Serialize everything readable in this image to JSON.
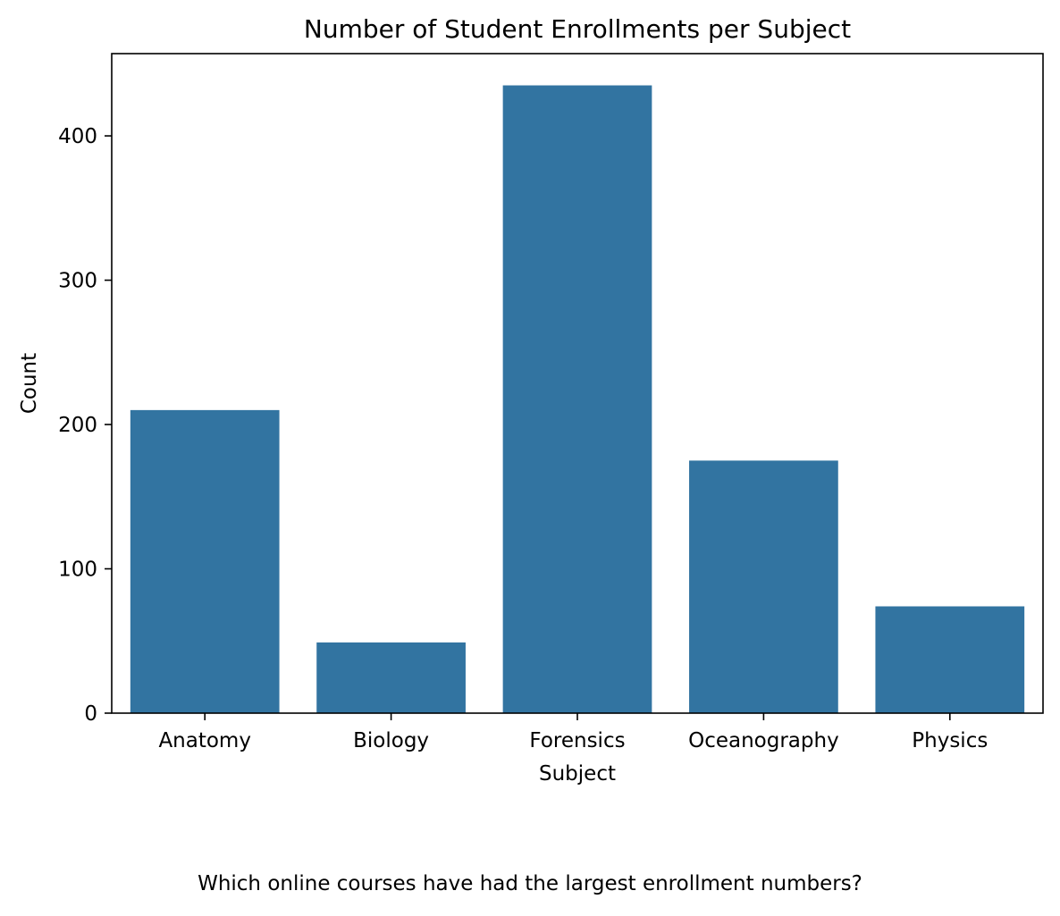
{
  "chart_data": {
    "type": "bar",
    "title": "Number of Student Enrollments per Subject",
    "xlabel": "Subject",
    "ylabel": "Count",
    "categories": [
      "Anatomy",
      "Biology",
      "Forensics",
      "Oceanography",
      "Physics"
    ],
    "values": [
      210,
      49,
      435,
      175,
      74
    ],
    "ylim": [
      0,
      457
    ],
    "yticks": [
      0,
      100,
      200,
      300,
      400
    ],
    "bar_color": "#3274a1",
    "grid": false
  },
  "caption": "Which online courses have had the largest enrollment numbers?"
}
